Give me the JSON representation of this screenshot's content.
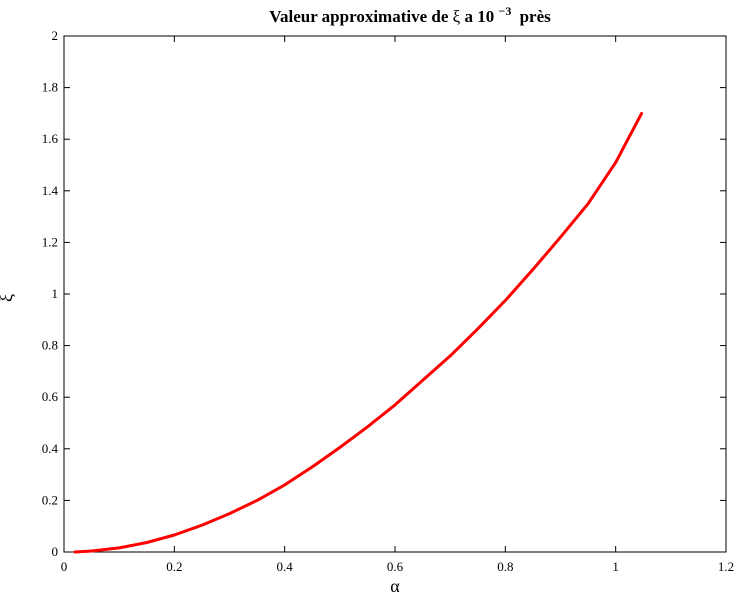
{
  "chart_data": {
    "type": "line",
    "title": {
      "prefix": "Valeur approximative de",
      "symbol": "ξ",
      "middle": "a 10",
      "exponent": "−3",
      "suffix": "près"
    },
    "xlabel": "α",
    "ylabel": "ξ",
    "xlim": [
      0,
      1.2
    ],
    "ylim": [
      0,
      2
    ],
    "x_ticks": [
      "0",
      "0.2",
      "0.4",
      "0.6",
      "0.8",
      "1",
      "1.2"
    ],
    "y_ticks": [
      "0",
      "0.2",
      "0.4",
      "0.6",
      "0.8",
      "1",
      "1.2",
      "1.4",
      "1.6",
      "1.8",
      "2"
    ],
    "grid": false,
    "series": [
      {
        "color": "#ff0000",
        "x": [
          0.02,
          0.05,
          0.1,
          0.15,
          0.2,
          0.25,
          0.3,
          0.35,
          0.4,
          0.45,
          0.5,
          0.55,
          0.6,
          0.65,
          0.7,
          0.75,
          0.8,
          0.85,
          0.9,
          0.95,
          1.0,
          1.047
        ],
        "y": [
          0.0,
          0.004,
          0.016,
          0.037,
          0.066,
          0.104,
          0.149,
          0.2,
          0.26,
          0.33,
          0.405,
          0.485,
          0.57,
          0.665,
          0.76,
          0.865,
          0.975,
          1.095,
          1.22,
          1.35,
          1.51,
          1.7
        ]
      }
    ]
  }
}
